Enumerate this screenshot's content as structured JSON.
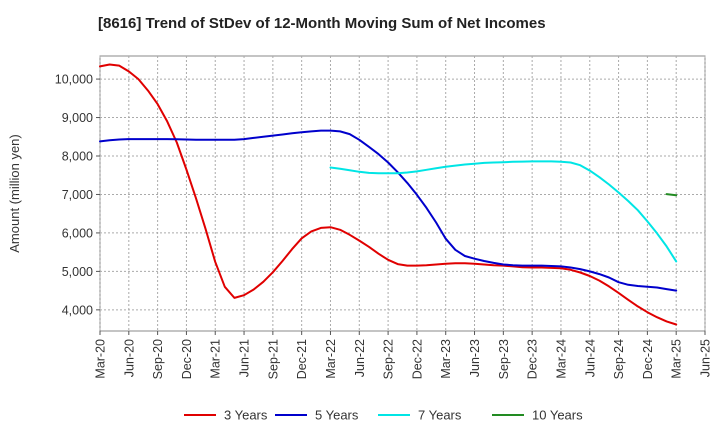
{
  "chart_data": {
    "type": "line",
    "title": "[8616]  Trend of StDev of 12-Month Moving Sum of Net Incomes",
    "xlabel": "",
    "ylabel": "Amount (million yen)",
    "x_tick_labels": [
      "Mar-20",
      "Jun-20",
      "Sep-20",
      "Dec-20",
      "Mar-21",
      "Jun-21",
      "Sep-21",
      "Dec-21",
      "Mar-22",
      "Jun-22",
      "Sep-22",
      "Dec-22",
      "Mar-23",
      "Jun-23",
      "Sep-23",
      "Dec-23",
      "Mar-24",
      "Jun-24",
      "Sep-24",
      "Dec-24",
      "Mar-25",
      "Jun-25"
    ],
    "y_ticks": [
      4000,
      5000,
      6000,
      7000,
      8000,
      9000,
      10000
    ],
    "y_tick_labels": [
      "4,000",
      "5,000",
      "6,000",
      "7,000",
      "8,000",
      "9,000",
      "10,000"
    ],
    "ylim": [
      3450,
      10600
    ],
    "grid": true,
    "legend_position": "bottom",
    "series": [
      {
        "name": "3 Years",
        "color": "#e00000",
        "x": [
          "Mar-20",
          "Apr-20",
          "May-20",
          "Jun-20",
          "Jul-20",
          "Aug-20",
          "Sep-20",
          "Oct-20",
          "Nov-20",
          "Dec-20",
          "Jan-21",
          "Feb-21",
          "Mar-21",
          "Apr-21",
          "May-21",
          "Jun-21",
          "Jul-21",
          "Aug-21",
          "Sep-21",
          "Oct-21",
          "Nov-21",
          "Dec-21",
          "Jan-22",
          "Feb-22",
          "Mar-22",
          "Apr-22",
          "May-22",
          "Jun-22",
          "Jul-22",
          "Aug-22",
          "Sep-22",
          "Oct-22",
          "Nov-22",
          "Dec-22",
          "Jan-23",
          "Feb-23",
          "Mar-23",
          "Apr-23",
          "May-23",
          "Jun-23",
          "Jul-23",
          "Aug-23",
          "Sep-23",
          "Oct-23",
          "Nov-23",
          "Dec-23",
          "Jan-24",
          "Feb-24",
          "Mar-24",
          "Apr-24",
          "May-24",
          "Jun-24",
          "Jul-24",
          "Aug-24",
          "Sep-24",
          "Oct-24",
          "Nov-24",
          "Dec-24",
          "Jan-25",
          "Feb-25",
          "Mar-25"
        ],
        "values": [
          10330,
          10380,
          10350,
          10200,
          10000,
          9700,
          9350,
          8900,
          8350,
          7650,
          6900,
          6100,
          5250,
          4600,
          4310,
          4380,
          4530,
          4730,
          4980,
          5270,
          5580,
          5860,
          6040,
          6130,
          6150,
          6080,
          5950,
          5800,
          5640,
          5460,
          5300,
          5190,
          5150,
          5150,
          5160,
          5180,
          5200,
          5210,
          5210,
          5200,
          5180,
          5160,
          5150,
          5130,
          5110,
          5100,
          5100,
          5090,
          5080,
          5040,
          4970,
          4880,
          4760,
          4610,
          4440,
          4260,
          4090,
          3940,
          3810,
          3700,
          3620
        ]
      },
      {
        "name": "5 Years",
        "color": "#0000cc",
        "x": [
          "Mar-20",
          "Apr-20",
          "May-20",
          "Jun-20",
          "Jul-20",
          "Aug-20",
          "Sep-20",
          "Oct-20",
          "Nov-20",
          "Dec-20",
          "Jan-21",
          "Feb-21",
          "Mar-21",
          "Apr-21",
          "May-21",
          "Jun-21",
          "Jul-21",
          "Aug-21",
          "Sep-21",
          "Oct-21",
          "Nov-21",
          "Dec-21",
          "Jan-22",
          "Feb-22",
          "Mar-22",
          "Apr-22",
          "May-22",
          "Jun-22",
          "Jul-22",
          "Aug-22",
          "Sep-22",
          "Oct-22",
          "Nov-22",
          "Dec-22",
          "Jan-23",
          "Feb-23",
          "Mar-23",
          "Apr-23",
          "May-23",
          "Jun-23",
          "Jul-23",
          "Aug-23",
          "Sep-23",
          "Oct-23",
          "Nov-23",
          "Dec-23",
          "Jan-24",
          "Feb-24",
          "Mar-24",
          "Apr-24",
          "May-24",
          "Jun-24",
          "Jul-24",
          "Aug-24",
          "Sep-24",
          "Oct-24",
          "Nov-24",
          "Dec-24",
          "Jan-25",
          "Feb-25",
          "Mar-25"
        ],
        "values": [
          8380,
          8410,
          8430,
          8440,
          8440,
          8440,
          8440,
          8440,
          8435,
          8430,
          8425,
          8420,
          8420,
          8420,
          8425,
          8440,
          8470,
          8500,
          8530,
          8560,
          8590,
          8620,
          8640,
          8660,
          8660,
          8640,
          8570,
          8420,
          8240,
          8050,
          7830,
          7580,
          7300,
          6990,
          6650,
          6270,
          5850,
          5560,
          5400,
          5330,
          5270,
          5220,
          5180,
          5160,
          5150,
          5150,
          5150,
          5140,
          5130,
          5100,
          5060,
          5000,
          4930,
          4840,
          4720,
          4650,
          4620,
          4600,
          4580,
          4540,
          4500
        ]
      },
      {
        "name": "7 Years",
        "color": "#00e5e5",
        "x": [
          "Mar-22",
          "Apr-22",
          "May-22",
          "Jun-22",
          "Jul-22",
          "Aug-22",
          "Sep-22",
          "Oct-22",
          "Nov-22",
          "Dec-22",
          "Jan-23",
          "Feb-23",
          "Mar-23",
          "Apr-23",
          "May-23",
          "Jun-23",
          "Jul-23",
          "Aug-23",
          "Sep-23",
          "Oct-23",
          "Nov-23",
          "Dec-23",
          "Jan-24",
          "Feb-24",
          "Mar-24",
          "Apr-24",
          "May-24",
          "Jun-24",
          "Jul-24",
          "Aug-24",
          "Sep-24",
          "Oct-24",
          "Nov-24",
          "Dec-24",
          "Jan-25",
          "Feb-25",
          "Mar-25"
        ],
        "values": [
          7700,
          7670,
          7630,
          7590,
          7560,
          7550,
          7550,
          7550,
          7570,
          7600,
          7640,
          7680,
          7720,
          7750,
          7780,
          7800,
          7820,
          7830,
          7840,
          7850,
          7855,
          7860,
          7860,
          7860,
          7850,
          7830,
          7760,
          7620,
          7450,
          7260,
          7050,
          6830,
          6590,
          6300,
          5990,
          5650,
          5260
        ]
      },
      {
        "name": "10 Years",
        "color": "#228b22",
        "x": [
          "Feb-25",
          "Mar-25"
        ],
        "values": [
          7010,
          6980
        ]
      }
    ]
  }
}
